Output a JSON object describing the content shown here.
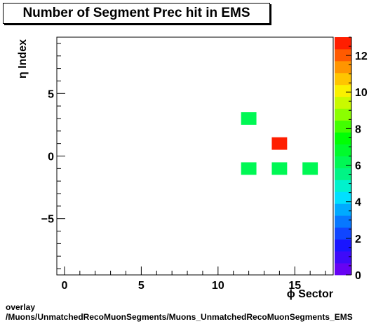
{
  "title": "Number of Segment Prec hit in EMS",
  "caption": {
    "line1": "overlay",
    "line2": "/Muons/UnmatchedRecoMuonSegments/Muons_UnmatchedRecoMuonSegments_EMS"
  },
  "chart_data": {
    "type": "heatmap",
    "title": "Number of Segment Prec hit in EMS",
    "xlabel": "ϕ Sector",
    "ylabel": "η Index",
    "xlim": [
      -0.5,
      17.5
    ],
    "ylim": [
      -9.5,
      9.5
    ],
    "xticks": [
      0,
      5,
      10,
      15
    ],
    "yticks": [
      -5,
      0,
      5
    ],
    "zlim": [
      0,
      13
    ],
    "zticks": [
      0,
      2,
      4,
      6,
      8,
      10,
      12
    ],
    "cells": [
      {
        "x": 12,
        "y": 3,
        "value": 6
      },
      {
        "x": 14,
        "y": 1,
        "value": 13
      },
      {
        "x": 12,
        "y": -1,
        "value": 6
      },
      {
        "x": 14,
        "y": -1,
        "value": 6
      },
      {
        "x": 16,
        "y": -1,
        "value": 6
      }
    ]
  }
}
